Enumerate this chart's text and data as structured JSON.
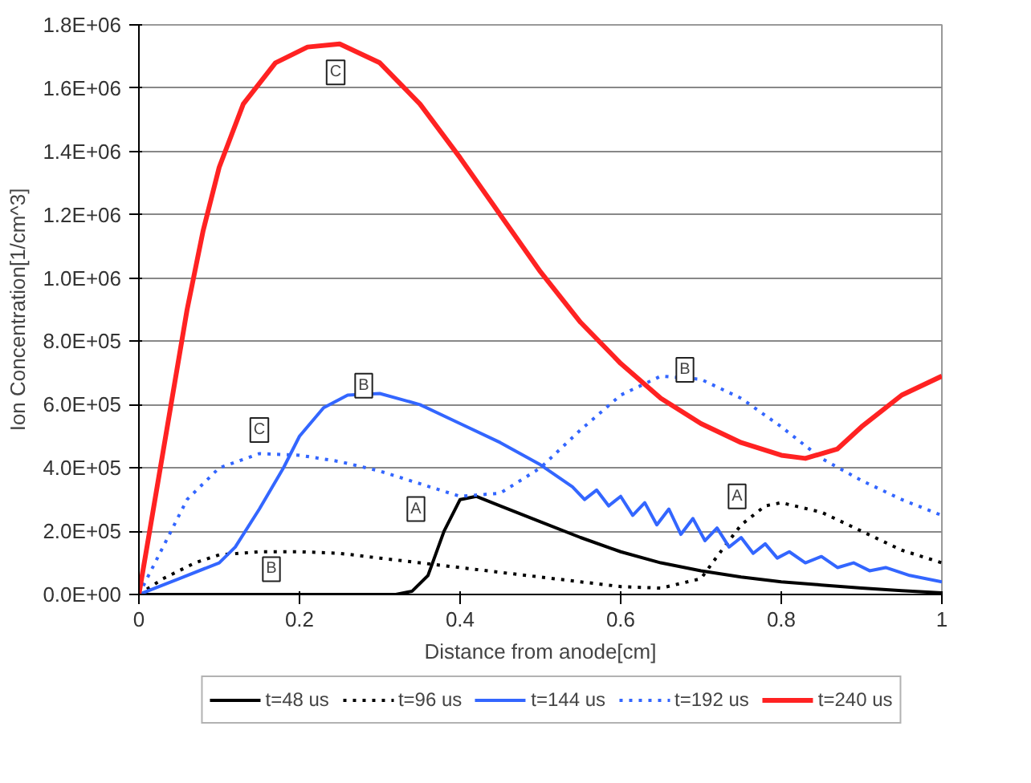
{
  "chart_data": {
    "type": "line",
    "xlabel": "Distance from anode[cm]",
    "ylabel": "Ion Concentration[1/cm^3]",
    "xlim": [
      0,
      1
    ],
    "ylim": [
      0,
      1800000
    ],
    "xticks": [
      0,
      0.2,
      0.4,
      0.6,
      0.8,
      1
    ],
    "yticks": [
      {
        "value": 0,
        "label": "0.0E+00"
      },
      {
        "value": 200000,
        "label": "2.0E+05"
      },
      {
        "value": 400000,
        "label": "4.0E+05"
      },
      {
        "value": 600000,
        "label": "6.0E+05"
      },
      {
        "value": 800000,
        "label": "8.0E+05"
      },
      {
        "value": 1000000,
        "label": "1.0E+06"
      },
      {
        "value": 1200000,
        "label": "1.2E+06"
      },
      {
        "value": 1400000,
        "label": "1.4E+06"
      },
      {
        "value": 1600000,
        "label": "1.6E+06"
      },
      {
        "value": 1800000,
        "label": "1.8E+06"
      }
    ],
    "grid": "y",
    "legend": "bottom",
    "marker": "none",
    "series": [
      {
        "name": "t=48 us",
        "color": "#000000",
        "line_style": "solid",
        "x": [
          0,
          0.1,
          0.2,
          0.3,
          0.32,
          0.34,
          0.36,
          0.38,
          0.4,
          0.42,
          0.45,
          0.5,
          0.55,
          0.6,
          0.65,
          0.7,
          0.75,
          0.8,
          0.85,
          0.9,
          0.95,
          1.0
        ],
        "values": [
          0,
          0,
          0,
          0,
          0,
          10000,
          60000,
          200000,
          300000,
          310000,
          280000,
          230000,
          180000,
          135000,
          100000,
          75000,
          55000,
          40000,
          30000,
          20000,
          12000,
          5000
        ]
      },
      {
        "name": "t=96 us",
        "color": "#000000",
        "line_style": "dotted",
        "x": [
          0,
          0.03,
          0.07,
          0.1,
          0.15,
          0.2,
          0.25,
          0.3,
          0.35,
          0.4,
          0.45,
          0.5,
          0.55,
          0.6,
          0.65,
          0.7,
          0.72,
          0.75,
          0.78,
          0.8,
          0.85,
          0.9,
          0.95,
          1.0
        ],
        "values": [
          0,
          50000,
          100000,
          125000,
          135000,
          135000,
          130000,
          115000,
          100000,
          85000,
          70000,
          55000,
          40000,
          25000,
          20000,
          50000,
          120000,
          220000,
          280000,
          290000,
          260000,
          200000,
          140000,
          100000
        ]
      },
      {
        "name": "t=144 us",
        "color": "#3366ff",
        "line_style": "solid",
        "x": [
          0,
          0.05,
          0.1,
          0.12,
          0.15,
          0.18,
          0.2,
          0.23,
          0.26,
          0.3,
          0.35,
          0.4,
          0.45,
          0.5,
          0.54,
          0.555,
          0.57,
          0.585,
          0.6,
          0.615,
          0.63,
          0.645,
          0.66,
          0.675,
          0.69,
          0.705,
          0.72,
          0.735,
          0.75,
          0.765,
          0.78,
          0.795,
          0.81,
          0.83,
          0.85,
          0.87,
          0.89,
          0.91,
          0.93,
          0.96,
          1.0
        ],
        "values": [
          0,
          50000,
          100000,
          150000,
          270000,
          400000,
          500000,
          590000,
          630000,
          635000,
          600000,
          540000,
          480000,
          410000,
          340000,
          300000,
          330000,
          280000,
          310000,
          250000,
          290000,
          220000,
          270000,
          190000,
          240000,
          170000,
          210000,
          150000,
          180000,
          130000,
          160000,
          115000,
          135000,
          100000,
          120000,
          85000,
          100000,
          75000,
          85000,
          60000,
          40000
        ]
      },
      {
        "name": "t=192 us",
        "color": "#3366ff",
        "line_style": "dotted",
        "x": [
          0,
          0.03,
          0.06,
          0.1,
          0.15,
          0.2,
          0.25,
          0.3,
          0.35,
          0.4,
          0.45,
          0.5,
          0.55,
          0.6,
          0.65,
          0.7,
          0.75,
          0.8,
          0.85,
          0.9,
          0.95,
          1.0
        ],
        "values": [
          0,
          150000,
          300000,
          400000,
          445000,
          440000,
          420000,
          390000,
          350000,
          310000,
          320000,
          400000,
          520000,
          630000,
          690000,
          680000,
          620000,
          530000,
          430000,
          360000,
          300000,
          250000
        ]
      },
      {
        "name": "t=240 us",
        "color": "#ff2222",
        "line_style": "solid",
        "x": [
          0,
          0.02,
          0.04,
          0.06,
          0.08,
          0.1,
          0.13,
          0.17,
          0.21,
          0.25,
          0.3,
          0.35,
          0.4,
          0.45,
          0.5,
          0.55,
          0.6,
          0.65,
          0.7,
          0.75,
          0.8,
          0.83,
          0.87,
          0.9,
          0.95,
          1.0
        ],
        "values": [
          0,
          300000,
          600000,
          900000,
          1150000,
          1350000,
          1550000,
          1680000,
          1730000,
          1740000,
          1680000,
          1550000,
          1380000,
          1200000,
          1020000,
          860000,
          730000,
          620000,
          540000,
          480000,
          440000,
          430000,
          460000,
          530000,
          630000,
          690000
        ]
      }
    ],
    "annotations": [
      {
        "text": "C",
        "x": 0.245,
        "y": 1650000
      },
      {
        "text": "B",
        "x": 0.28,
        "y": 660000
      },
      {
        "text": "C",
        "x": 0.15,
        "y": 520000
      },
      {
        "text": "B",
        "x": 0.165,
        "y": 80000
      },
      {
        "text": "A",
        "x": 0.345,
        "y": 270000
      },
      {
        "text": "A",
        "x": 0.745,
        "y": 310000
      },
      {
        "text": "B",
        "x": 0.68,
        "y": 710000
      }
    ]
  }
}
